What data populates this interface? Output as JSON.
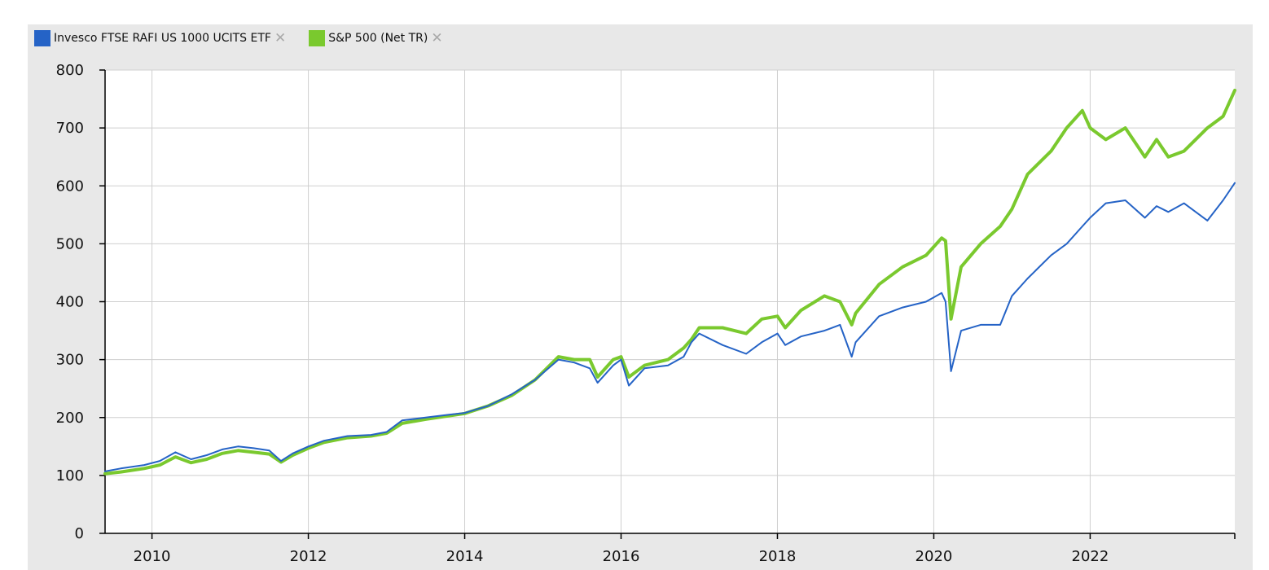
{
  "legend": [
    {
      "name": "Invesco FTSE RAFI US 1000 UCITS ETF",
      "color": "#2563c6",
      "remove_icon": "close-icon"
    },
    {
      "name": "S&P 500 (Net TR)",
      "color": "#7ac92e",
      "remove_icon": "close-icon"
    }
  ],
  "chart_data": {
    "type": "line",
    "title": "",
    "xlabel": "",
    "ylabel": "",
    "xlim": [
      2009.4,
      2023.85
    ],
    "ylim": [
      0,
      800
    ],
    "yticks": [
      0,
      100,
      200,
      300,
      400,
      500,
      600,
      700,
      800
    ],
    "xticks": [
      2010,
      2012,
      2014,
      2016,
      2018,
      2020,
      2022
    ],
    "grid": true,
    "legend_position": "top-left",
    "series": [
      {
        "name": "Invesco FTSE RAFI US 1000 UCITS ETF",
        "color": "#2563c6",
        "x": [
          2009.4,
          2009.6,
          2009.9,
          2010.1,
          2010.3,
          2010.5,
          2010.7,
          2010.9,
          2011.1,
          2011.3,
          2011.5,
          2011.65,
          2011.8,
          2012.0,
          2012.2,
          2012.5,
          2012.8,
          2013.0,
          2013.2,
          2013.5,
          2013.8,
          2014.0,
          2014.3,
          2014.6,
          2014.9,
          2015.2,
          2015.4,
          2015.6,
          2015.7,
          2015.9,
          2016.0,
          2016.1,
          2016.3,
          2016.6,
          2016.8,
          2016.9,
          2017.0,
          2017.3,
          2017.6,
          2017.8,
          2018.0,
          2018.1,
          2018.3,
          2018.6,
          2018.8,
          2018.95,
          2019.0,
          2019.3,
          2019.6,
          2019.9,
          2020.1,
          2020.15,
          2020.22,
          2020.35,
          2020.6,
          2020.85,
          2021.0,
          2021.2,
          2021.5,
          2021.7,
          2021.9,
          2022.0,
          2022.2,
          2022.45,
          2022.7,
          2022.85,
          2023.0,
          2023.2,
          2023.5,
          2023.7,
          2023.85
        ],
        "y": [
          107,
          112,
          118,
          125,
          140,
          128,
          135,
          145,
          150,
          147,
          143,
          125,
          138,
          150,
          160,
          168,
          170,
          175,
          195,
          200,
          205,
          208,
          220,
          240,
          265,
          300,
          295,
          285,
          260,
          290,
          300,
          255,
          285,
          290,
          305,
          330,
          345,
          325,
          310,
          330,
          345,
          325,
          340,
          350,
          360,
          305,
          330,
          375,
          390,
          400,
          415,
          400,
          280,
          350,
          360,
          360,
          410,
          440,
          480,
          500,
          530,
          545,
          570,
          575,
          545,
          565,
          555,
          570,
          540,
          575,
          605
        ]
      },
      {
        "name": "S&P 500 (Net TR)",
        "color": "#7ac92e",
        "x": [
          2009.4,
          2009.6,
          2009.9,
          2010.1,
          2010.3,
          2010.5,
          2010.7,
          2010.9,
          2011.1,
          2011.3,
          2011.5,
          2011.65,
          2011.8,
          2012.0,
          2012.2,
          2012.5,
          2012.8,
          2013.0,
          2013.2,
          2013.5,
          2013.8,
          2014.0,
          2014.3,
          2014.6,
          2014.9,
          2015.2,
          2015.4,
          2015.6,
          2015.7,
          2015.9,
          2016.0,
          2016.1,
          2016.3,
          2016.6,
          2016.8,
          2016.9,
          2017.0,
          2017.3,
          2017.6,
          2017.8,
          2018.0,
          2018.1,
          2018.3,
          2018.6,
          2018.8,
          2018.95,
          2019.0,
          2019.3,
          2019.6,
          2019.9,
          2020.1,
          2020.15,
          2020.22,
          2020.35,
          2020.6,
          2020.85,
          2021.0,
          2021.2,
          2021.5,
          2021.7,
          2021.9,
          2022.0,
          2022.2,
          2022.45,
          2022.7,
          2022.85,
          2023.0,
          2023.2,
          2023.5,
          2023.7,
          2023.85
        ],
        "y": [
          103,
          106,
          112,
          118,
          132,
          122,
          128,
          138,
          143,
          140,
          137,
          123,
          135,
          147,
          157,
          165,
          168,
          173,
          190,
          197,
          203,
          207,
          220,
          238,
          265,
          305,
          300,
          300,
          270,
          300,
          305,
          270,
          290,
          300,
          320,
          335,
          355,
          355,
          345,
          370,
          375,
          355,
          385,
          410,
          400,
          360,
          380,
          430,
          460,
          480,
          510,
          505,
          370,
          460,
          500,
          530,
          560,
          620,
          660,
          700,
          730,
          700,
          680,
          700,
          650,
          680,
          650,
          660,
          700,
          720,
          765
        ]
      }
    ]
  }
}
